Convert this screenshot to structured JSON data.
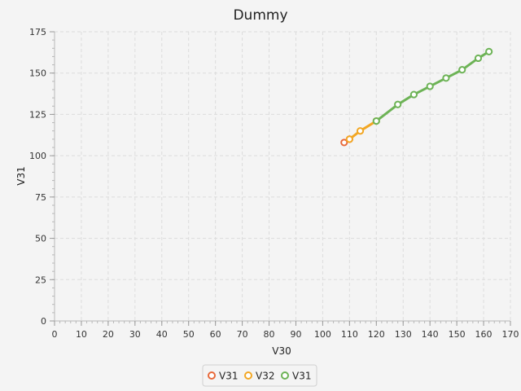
{
  "chart_data": {
    "type": "line",
    "title": "Dummy",
    "xlabel": "V30",
    "ylabel": "V31",
    "xlim": [
      0,
      170
    ],
    "ylim": [
      0,
      175
    ],
    "x_ticks": [
      0,
      10,
      20,
      30,
      40,
      50,
      60,
      70,
      80,
      90,
      100,
      110,
      120,
      130,
      140,
      150,
      160,
      170
    ],
    "y_ticks": [
      0,
      25,
      50,
      75,
      100,
      125,
      150,
      175
    ],
    "grid": true,
    "legend_position": "bottom-center",
    "series": [
      {
        "name": "V31",
        "color": "#e8693a",
        "x": [
          108,
          110
        ],
        "y": [
          108,
          110
        ]
      },
      {
        "name": "V32",
        "color": "#f2a724",
        "x": [
          110,
          114,
          120
        ],
        "y": [
          110,
          115,
          121
        ]
      },
      {
        "name": "V31",
        "color": "#6db356",
        "x": [
          120,
          128,
          134,
          140,
          146,
          152,
          158,
          162
        ],
        "y": [
          121,
          131,
          137,
          142,
          147,
          152,
          159,
          163
        ]
      }
    ]
  }
}
